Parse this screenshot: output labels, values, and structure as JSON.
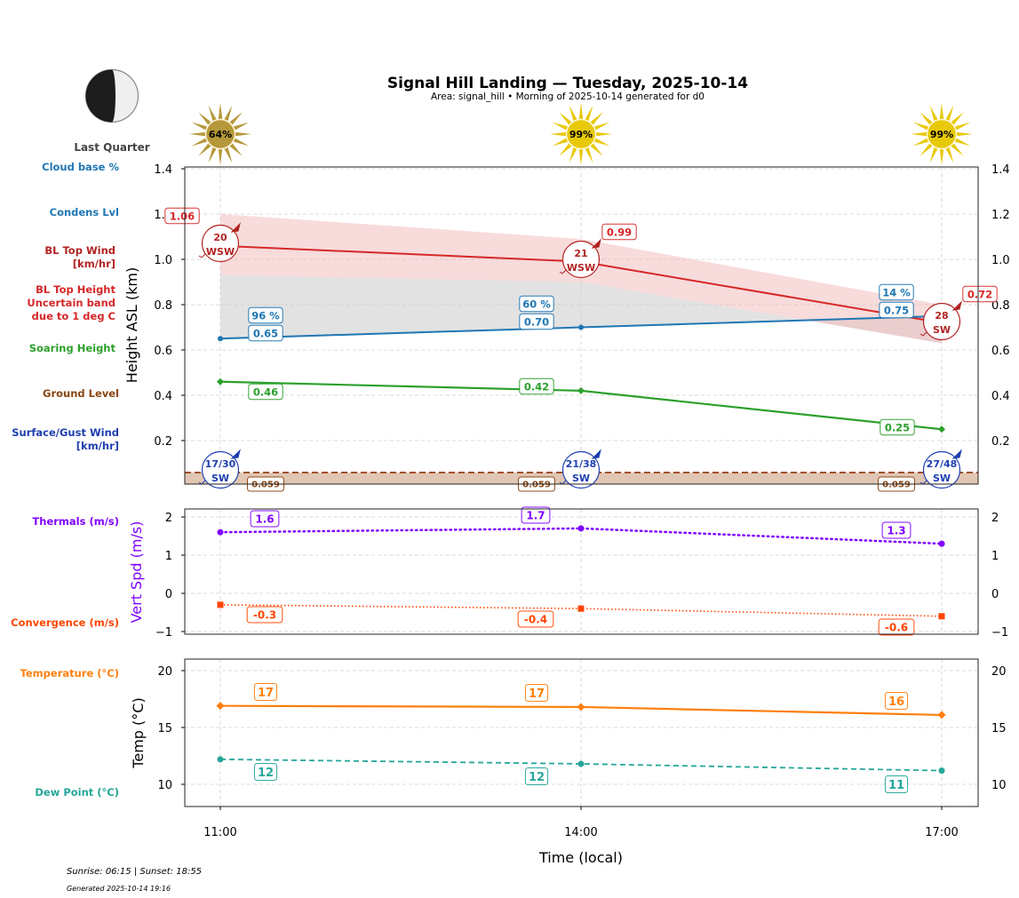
{
  "header": {
    "title": "Signal Hill Landing — Tuesday, 2025-10-14",
    "subtitle": "Area: signal_hill • Morning of 2025-10-14 generated for d0",
    "moon_phase": "Last Quarter",
    "moon_icon": "moon-last-quarter-icon"
  },
  "footer": {
    "sun_times": "Sunrise: 06:15 | Sunset: 18:55",
    "generated": "Generated 2025-10-14 19:16"
  },
  "colors": {
    "cloud": "#1f77b4",
    "bl_wind": "#b22222",
    "bl_top": "#d62728",
    "soaring": "#2ca02c",
    "ground": "#8b4513",
    "surface_wind": "#1e3fb0",
    "thermals": "#8000ff",
    "convergence": "#ff4500",
    "temperature": "#ff7f0e",
    "dew_point": "#26a69a"
  },
  "side_labels": {
    "cloud_base": "Cloud base %",
    "condens": "Condens Lvl",
    "bl_wind_1": "BL Top Wind",
    "bl_wind_2": "[km/hr]",
    "bl_top_1": "BL Top Height",
    "bl_top_2": "Uncertain band",
    "bl_top_3": "due to 1 deg C",
    "soaring": "Soaring Height",
    "ground": "Ground Level",
    "surface_1": "Surface/Gust Wind",
    "surface_2": "[km/hr]",
    "thermals": "Thermals (m/s)",
    "convergence": "Convergence (m/s)",
    "temperature": "Temperature (°C)",
    "dew_point": "Dew Point (°C)"
  },
  "chart_data": [
    {
      "type": "line",
      "name": "height-panel",
      "ylabel": "Height ASL (km)",
      "x": [
        "11:00",
        "14:00",
        "17:00"
      ],
      "ylim": [
        0,
        1.4
      ],
      "yticks": [
        "0.2",
        "0.4",
        "0.6",
        "0.8",
        "1.0",
        "1.2",
        "1.4"
      ],
      "grid": true,
      "sun_percent": [
        "64%",
        "99%",
        "99%"
      ],
      "series": [
        {
          "name": "BL Top Height",
          "values": [
            1.06,
            0.99,
            0.72
          ],
          "labels": [
            "1.06",
            "0.99",
            "0.72"
          ],
          "band_upper": [
            1.2,
            1.09,
            0.8
          ],
          "band_lower": [
            0.93,
            0.9,
            0.63
          ]
        },
        {
          "name": "Condens Lvl",
          "values": [
            0.65,
            0.7,
            0.75
          ],
          "labels": [
            "0.65",
            "0.70",
            "0.75"
          ]
        },
        {
          "name": "Cloud base %",
          "values": [
            96,
            60,
            14
          ],
          "labels": [
            "96 %",
            "60 %",
            "14 %"
          ]
        },
        {
          "name": "Soaring Height",
          "values": [
            0.46,
            0.42,
            0.25
          ],
          "labels": [
            "0.46",
            "0.42",
            "0.25"
          ]
        },
        {
          "name": "Ground Level",
          "values": [
            0.059,
            0.059,
            0.059
          ],
          "labels": [
            "0.059",
            "0.059",
            "0.059"
          ]
        }
      ],
      "bl_wind": [
        {
          "speed": "20",
          "dir": "WSW"
        },
        {
          "speed": "21",
          "dir": "WSW"
        },
        {
          "speed": "28",
          "dir": "SW"
        }
      ],
      "surface_wind": [
        {
          "speed": "17/30",
          "dir": "SW"
        },
        {
          "speed": "21/38",
          "dir": "SW"
        },
        {
          "speed": "27/48",
          "dir": "SW"
        }
      ]
    },
    {
      "type": "line",
      "name": "vert-panel",
      "ylabel": "Vert Spd (m/s)",
      "x": [
        "11:00",
        "14:00",
        "17:00"
      ],
      "ylim": [
        -1.1,
        2.2
      ],
      "yticks": [
        "−1",
        "0",
        "1",
        "2"
      ],
      "grid": true,
      "series": [
        {
          "name": "Thermals (m/s)",
          "values": [
            1.6,
            1.7,
            1.3
          ],
          "labels": [
            "1.6",
            "1.7",
            "1.3"
          ]
        },
        {
          "name": "Convergence (m/s)",
          "values": [
            -0.3,
            -0.4,
            -0.6
          ],
          "labels": [
            "-0.3",
            "-0.4",
            "-0.6"
          ]
        }
      ]
    },
    {
      "type": "line",
      "name": "temp-panel",
      "ylabel": "Temp (°C)",
      "xlabel": "Time (local)",
      "x": [
        "11:00",
        "14:00",
        "17:00"
      ],
      "ylim": [
        8.1,
        21
      ],
      "yticks": [
        "10",
        "15",
        "20"
      ],
      "grid": true,
      "series": [
        {
          "name": "Temperature (°C)",
          "values": [
            16.9,
            16.8,
            16.1
          ],
          "labels": [
            "17",
            "17",
            "16"
          ]
        },
        {
          "name": "Dew Point (°C)",
          "values": [
            12.2,
            11.8,
            11.2
          ],
          "labels": [
            "12",
            "12",
            "11"
          ]
        }
      ]
    }
  ]
}
